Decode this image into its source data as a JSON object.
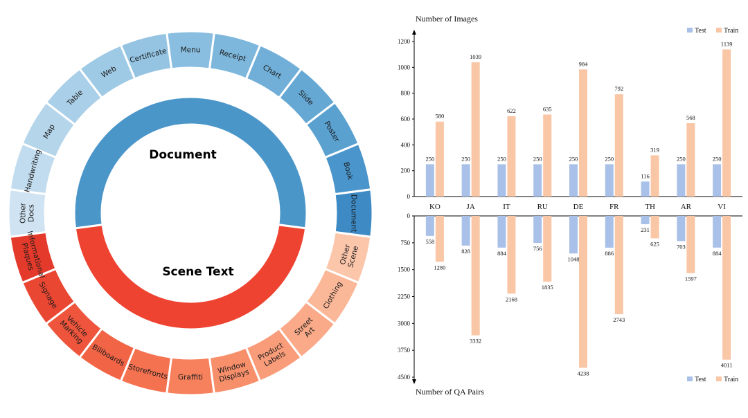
{
  "chart_data": [
    {
      "type": "sunburst",
      "inner": [
        {
          "label": "Document",
          "color": "#4b96c9"
        },
        {
          "label": "Scene Text",
          "color": "#ee4331"
        }
      ],
      "outer": [
        {
          "label": "Document",
          "group": "Document",
          "color": "#3d8ac4"
        },
        {
          "label": "Book",
          "group": "Document",
          "color": "#4a95cb"
        },
        {
          "label": "Poster",
          "group": "Document",
          "color": "#5aa1d0"
        },
        {
          "label": "Slide",
          "group": "Document",
          "color": "#66a8d4"
        },
        {
          "label": "Chart",
          "group": "Document",
          "color": "#71afd8"
        },
        {
          "label": "Receipt",
          "group": "Document",
          "color": "#7db7dc"
        },
        {
          "label": "Menu",
          "group": "Document",
          "color": "#89bee0"
        },
        {
          "label": "Certificate",
          "group": "Document",
          "color": "#94c4e2"
        },
        {
          "label": "Web",
          "group": "Document",
          "color": "#9fcae5"
        },
        {
          "label": "Table",
          "group": "Document",
          "color": "#aacfe8"
        },
        {
          "label": "Map",
          "group": "Document",
          "color": "#b5d5eb"
        },
        {
          "label": "Handwriting",
          "group": "Document",
          "color": "#c1dcee"
        },
        {
          "label": "Other Docs",
          "group": "Document",
          "color": "#cfe3f2"
        },
        {
          "label": "Informational Plaques",
          "group": "Scene Text",
          "color": "#e43a2b"
        },
        {
          "label": "Signage",
          "group": "Scene Text",
          "color": "#ea4733"
        },
        {
          "label": "Vehicle Marking",
          "group": "Scene Text",
          "color": "#ee553c"
        },
        {
          "label": "Billboards",
          "group": "Scene Text",
          "color": "#f26446"
        },
        {
          "label": "Storefronts",
          "group": "Scene Text",
          "color": "#f57251"
        },
        {
          "label": "Graffiti",
          "group": "Scene Text",
          "color": "#f7815d"
        },
        {
          "label": "Window Displays",
          "group": "Scene Text",
          "color": "#f88f6b"
        },
        {
          "label": "Product Labels",
          "group": "Scene Text",
          "color": "#f99c79"
        },
        {
          "label": "Street Art",
          "group": "Scene Text",
          "color": "#faaa88"
        },
        {
          "label": "Clothing",
          "group": "Scene Text",
          "color": "#fbb898"
        },
        {
          "label": "Other Scene",
          "group": "Scene Text",
          "color": "#fcc6ab"
        }
      ]
    },
    {
      "type": "bar",
      "categories": [
        "KO",
        "JA",
        "IT",
        "RU",
        "DE",
        "FR",
        "TH",
        "AR",
        "VI"
      ],
      "top": {
        "ylabel": "Number of Images",
        "ylim": [
          0,
          1200
        ],
        "ticks": [
          0,
          200,
          400,
          600,
          800,
          1000,
          1200
        ],
        "series": [
          {
            "name": "Test",
            "color": "#a9c1e8",
            "values": [
              250,
              250,
              250,
              250,
              250,
              250,
              116,
              250,
              250
            ]
          },
          {
            "name": "Train",
            "color": "#f9c6a6",
            "values": [
              580,
              1039,
              622,
              635,
              984,
              792,
              319,
              568,
              1139
            ]
          }
        ],
        "legend": "top-right"
      },
      "bottom": {
        "ylabel": "Number of QA Pairs",
        "ylim": [
          0,
          4500
        ],
        "ticks": [
          0,
          750,
          1500,
          2250,
          3000,
          3750,
          4500
        ],
        "series": [
          {
            "name": "Test",
            "color": "#a9c1e8",
            "values": [
              558,
              828,
              884,
              756,
              1048,
              886,
              231,
              703,
              884
            ]
          },
          {
            "name": "Train",
            "color": "#f9c6a6",
            "values": [
              1280,
              3332,
              2168,
              1835,
              4238,
              2743,
              625,
              1597,
              4011
            ]
          }
        ],
        "legend": "bottom-right"
      },
      "grid": false
    }
  ]
}
